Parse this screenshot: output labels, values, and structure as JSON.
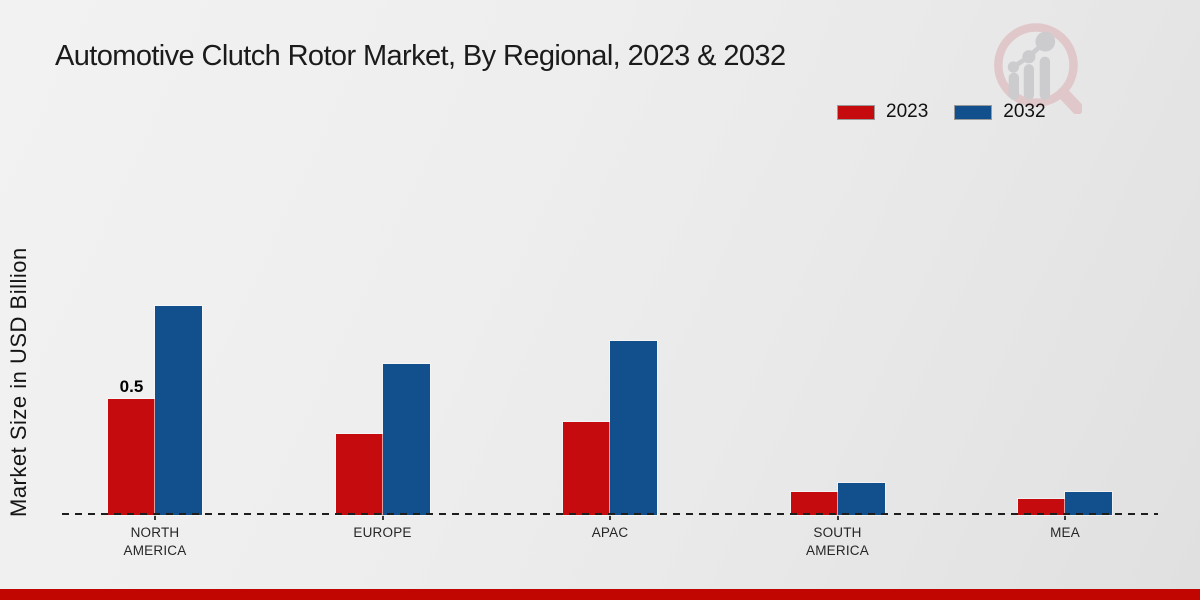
{
  "title": "Automotive Clutch Rotor Market, By Regional, 2023 & 2032",
  "y_axis_label": "Market Size in USD Billion",
  "colors": {
    "background_top": "#f2f2f2",
    "background_bottom": "#e0e0e0",
    "series_2023": "#c60b0e",
    "series_2032": "#11508c",
    "bottom_bar": "#c10500",
    "baseline": "#1e1e1e",
    "text": "#1b1b1b"
  },
  "watermark": {
    "icon": "market-research-magnifier-logo",
    "ring_color": "#dfc2c5",
    "chart_color": "#c8c8ca"
  },
  "chart_data": {
    "type": "bar",
    "title": "Automotive Clutch Rotor Market, By Regional, 2023 & 2032",
    "categories": [
      "NORTH AMERICA",
      "EUROPE",
      "APAC",
      "SOUTH AMERICA",
      "MEA"
    ],
    "series": [
      {
        "name": "2023",
        "color": "#c60b0e",
        "values": [
          0.5,
          0.35,
          0.4,
          0.1,
          0.07
        ],
        "data_labels": [
          "0.5",
          "",
          "",
          "",
          ""
        ]
      },
      {
        "name": "2032",
        "color": "#11508c",
        "values": [
          0.9,
          0.65,
          0.75,
          0.14,
          0.1
        ],
        "data_labels": [
          "",
          "",
          "",
          "",
          ""
        ]
      }
    ],
    "xlabel": "",
    "ylabel": "Market Size in USD Billion",
    "ylim": [
      0,
      1.0
    ],
    "grid": false,
    "legend_position": "top-right",
    "baseline_style": "dashed-zero-line"
  }
}
